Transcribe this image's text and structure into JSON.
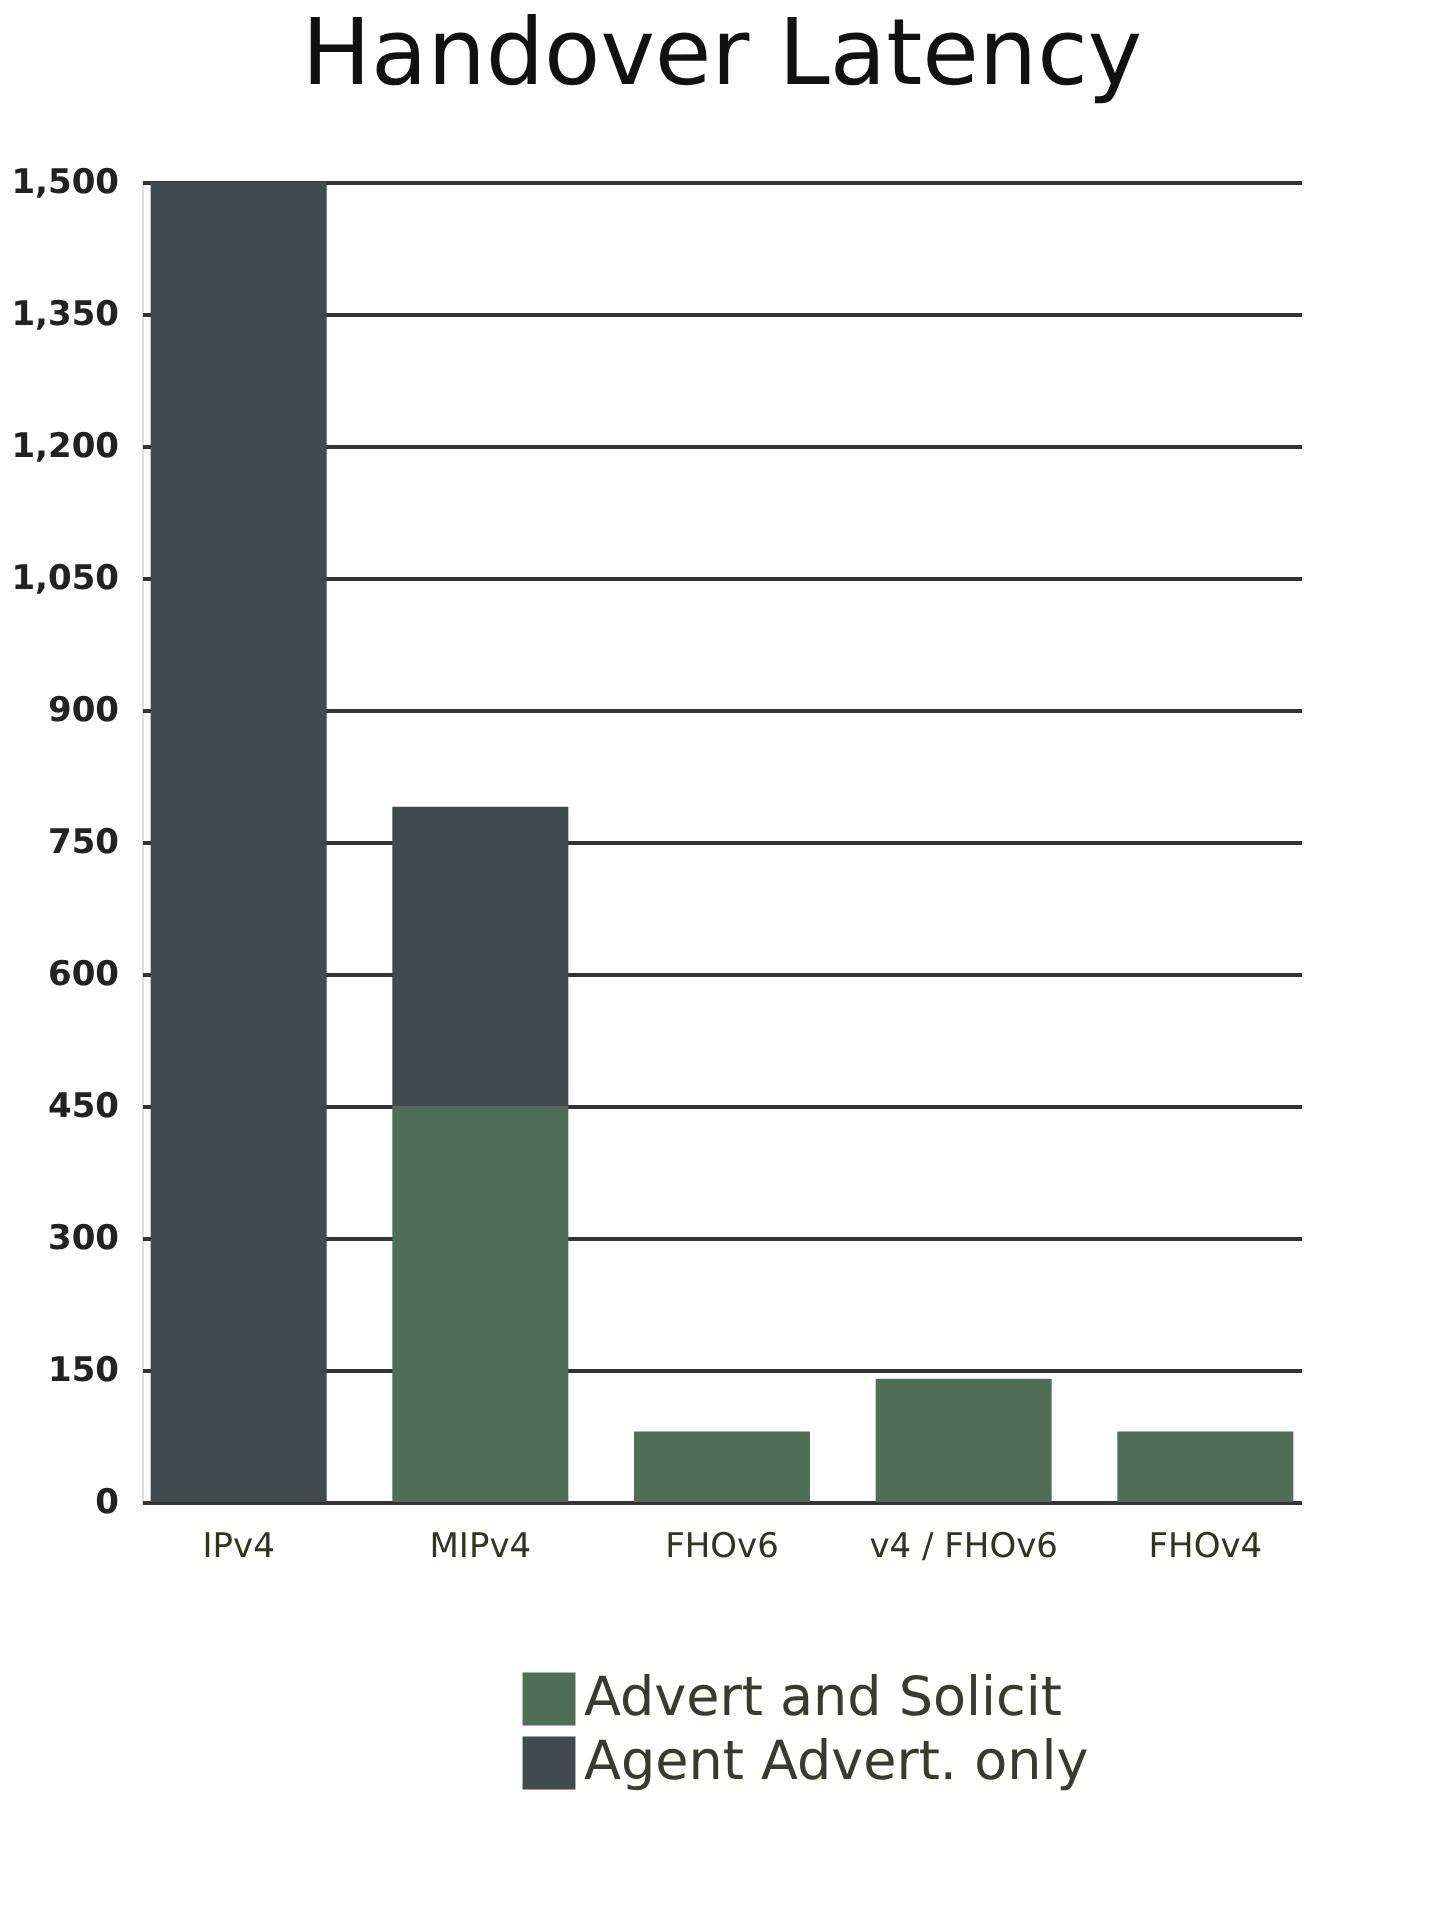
{
  "chart_data": {
    "type": "bar",
    "title": "Handover Latency",
    "stacked": true,
    "categories": [
      "IPv4",
      "MIPv4",
      "FHOv6",
      "v4 / FHOv6",
      "FHOv4"
    ],
    "series": [
      {
        "name": "Advert and Solicit",
        "color": "#4e6e58",
        "values": [
          null,
          450,
          80,
          140,
          80
        ]
      },
      {
        "name": "Agent Advert. only",
        "color": "#414a4c",
        "values": [
          1500,
          340,
          null,
          null,
          null
        ]
      }
    ],
    "ylim": [
      0,
      1500
    ],
    "yticks": [
      0,
      {
        "value": 150,
        "label": "150"
      },
      300,
      450,
      600,
      750,
      900,
      {
        "value": 1050,
        "label": "1,050"
      },
      {
        "value": 1200,
        "label": "1,200"
      },
      {
        "value": 1350,
        "label": "1,350"
      },
      {
        "value": 1500,
        "label": "1,500"
      }
    ],
    "grid": "y",
    "legend": "bottom right"
  }
}
